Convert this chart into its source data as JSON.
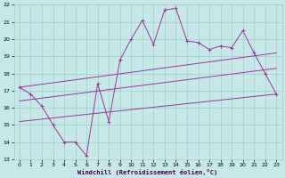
{
  "xlabel": "Windchill (Refroidissement éolien,°C)",
  "xlim": [
    -0.5,
    23.5
  ],
  "ylim": [
    13,
    22
  ],
  "xticks": [
    0,
    1,
    2,
    3,
    4,
    5,
    6,
    7,
    8,
    9,
    10,
    11,
    12,
    13,
    14,
    15,
    16,
    17,
    18,
    19,
    20,
    21,
    22,
    23
  ],
  "yticks": [
    13,
    14,
    15,
    16,
    17,
    18,
    19,
    20,
    21,
    22
  ],
  "bg_color": "#c6e8e8",
  "grid_color": "#a0cccc",
  "line_color": "#993399",
  "main_x": [
    0,
    1,
    2,
    3,
    4,
    5,
    6,
    7,
    8,
    9,
    10,
    11,
    12,
    13,
    14,
    15,
    16,
    17,
    18,
    19,
    20,
    21,
    22,
    23
  ],
  "main_y": [
    17.2,
    16.8,
    16.1,
    15.0,
    14.0,
    14.0,
    13.2,
    17.4,
    15.2,
    18.8,
    20.0,
    21.1,
    19.7,
    21.7,
    21.8,
    19.9,
    19.8,
    19.4,
    19.6,
    19.5,
    20.5,
    19.2,
    18.0,
    16.8
  ],
  "trend1_x": [
    0,
    23
  ],
  "trend1_y": [
    17.2,
    19.2
  ],
  "trend2_x": [
    0,
    23
  ],
  "trend2_y": [
    16.4,
    18.3
  ],
  "trend3_x": [
    0,
    23
  ],
  "trend3_y": [
    15.2,
    16.8
  ]
}
